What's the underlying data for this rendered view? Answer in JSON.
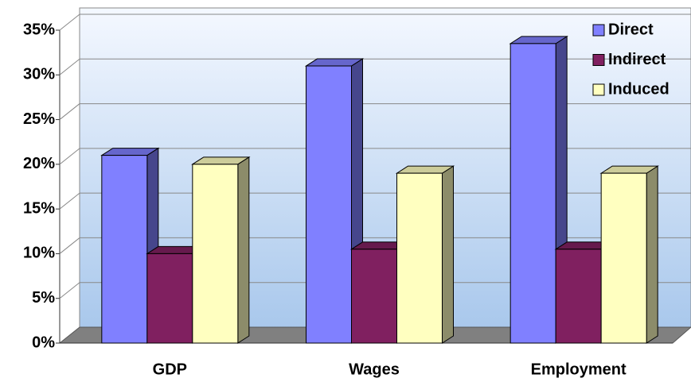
{
  "chart_data": {
    "type": "bar3d",
    "categories": [
      "GDP",
      "Wages",
      "Employment"
    ],
    "series": [
      {
        "name": "Direct",
        "color": "#8080ff",
        "values": [
          21,
          31,
          33.5
        ]
      },
      {
        "name": "Indirect",
        "color": "#802060",
        "values": [
          10,
          10.5,
          10.5
        ]
      },
      {
        "name": "Induced",
        "color": "#ffffc0",
        "values": [
          20,
          19,
          19
        ]
      }
    ],
    "ylim": [
      0,
      35
    ],
    "yticks": [
      {
        "value": 0,
        "label": "0%"
      },
      {
        "value": 5,
        "label": "5%"
      },
      {
        "value": 10,
        "label": "10%"
      },
      {
        "value": 15,
        "label": "15%"
      },
      {
        "value": 20,
        "label": "20%"
      },
      {
        "value": 25,
        "label": "25%"
      },
      {
        "value": 30,
        "label": "30%"
      },
      {
        "value": 35,
        "label": "35%"
      }
    ],
    "grid": true,
    "legend": "top-right"
  }
}
